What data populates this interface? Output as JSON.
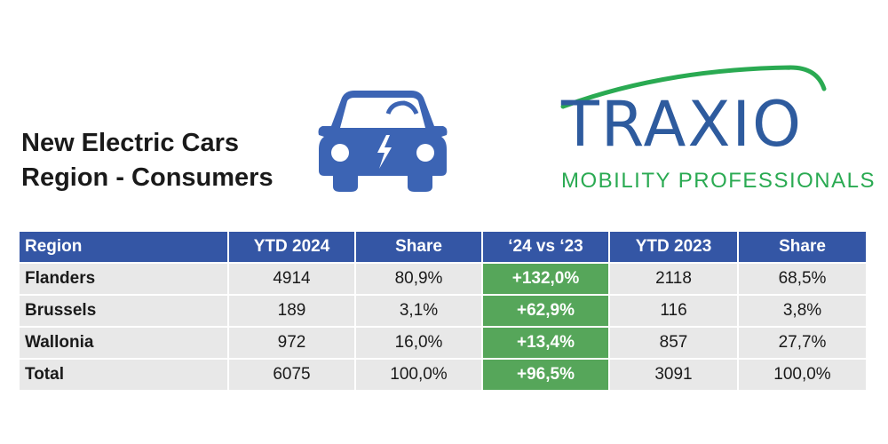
{
  "title": {
    "line1": "New Electric Cars",
    "line2": "Region - Consumers"
  },
  "logo": {
    "name": "TRAXIO",
    "tagline": "MOBILITY PROFESSIONALS"
  },
  "colors": {
    "header_blue": "#3456a5",
    "change_green": "#56a65a",
    "cell_gray": "#e8e8e8",
    "logo_blue": "#2e5b9e",
    "logo_green": "#2aaa52"
  },
  "table": {
    "headers": [
      "Region",
      "YTD 2024",
      "Share",
      "‘24 vs ‘23",
      "YTD 2023",
      "Share"
    ],
    "rows": [
      {
        "region": "Flanders",
        "ytd2024": "4914",
        "share2024": "80,9%",
        "change": "+132,0%",
        "ytd2023": "2118",
        "share2023": "68,5%"
      },
      {
        "region": "Brussels",
        "ytd2024": "189",
        "share2024": "3,1%",
        "change": "+62,9%",
        "ytd2023": "116",
        "share2023": "3,8%"
      },
      {
        "region": "Wallonia",
        "ytd2024": "972",
        "share2024": "16,0%",
        "change": "+13,4%",
        "ytd2023": "857",
        "share2023": "27,7%"
      },
      {
        "region": "Total",
        "ytd2024": "6075",
        "share2024": "100,0%",
        "change": "+96,5%",
        "ytd2023": "3091",
        "share2023": "100,0%"
      }
    ]
  }
}
